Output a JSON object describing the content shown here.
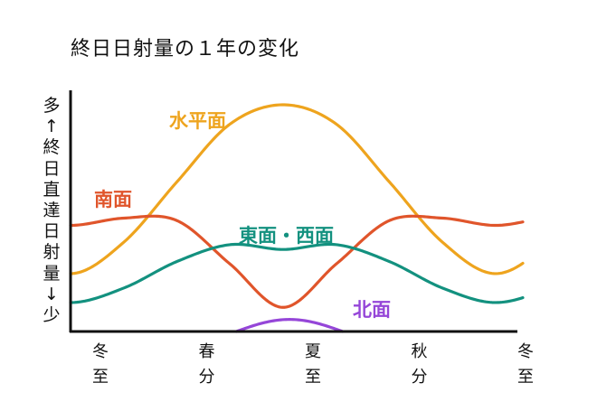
{
  "chart_data": {
    "type": "line",
    "title": "終日日射量の１年の変化",
    "ylabel": "多↑終日直達日射量↓少",
    "ylabel_chars": [
      "多",
      "↑",
      "終",
      "日",
      "直",
      "達",
      "日",
      "射",
      "量",
      "↓",
      "少"
    ],
    "ylim": [
      0,
      100
    ],
    "y_ticks_shown": false,
    "grid": false,
    "legend": "none (series labeled inline)",
    "x": [
      0,
      0.5,
      1,
      1.5,
      2,
      2.5,
      3,
      3.5,
      4
    ],
    "x_ticks": [
      {
        "x": 0,
        "lines": [
          "冬",
          "至"
        ]
      },
      {
        "x": 1,
        "lines": [
          "春",
          "分"
        ]
      },
      {
        "x": 2,
        "lines": [
          "夏",
          "至"
        ]
      },
      {
        "x": 3,
        "lines": [
          "秋",
          "分"
        ]
      },
      {
        "x": 4,
        "lines": [
          "冬",
          "至"
        ]
      }
    ],
    "series": [
      {
        "name": "水平面",
        "color": "#eea41e",
        "values": [
          24,
          37,
          62,
          86,
          94,
          86,
          62,
          37,
          24
        ]
      },
      {
        "name": "南面",
        "color": "#e0552b",
        "values": [
          44,
          47,
          46,
          28,
          10,
          28,
          46,
          47,
          44
        ]
      },
      {
        "name": "東面・西面",
        "color": "#13917f",
        "values": [
          12,
          18,
          29,
          36,
          34,
          36,
          29,
          18,
          12
        ]
      },
      {
        "name": "北面",
        "color": "#9546d8",
        "values": [
          null,
          null,
          null,
          1,
          5,
          1,
          null,
          null,
          null
        ],
        "x_range": [
          1.56,
          2.56
        ]
      }
    ]
  }
}
